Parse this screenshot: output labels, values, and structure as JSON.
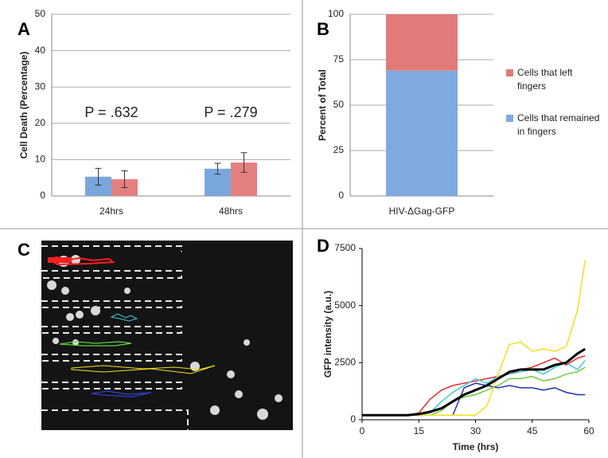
{
  "chart_data": [
    {
      "type": "bar",
      "label": "A",
      "ylabel": "Cell Death (Percentage)",
      "categories": [
        "24hrs",
        "48hrs"
      ],
      "series": [
        {
          "color": "#79a7dc",
          "values": [
            5.3,
            7.5
          ],
          "errors": [
            2.3,
            1.5
          ]
        },
        {
          "color": "#e58080",
          "values": [
            4.6,
            9.2
          ],
          "errors": [
            2.3,
            2.7
          ]
        }
      ],
      "annotations": [
        "P = .632",
        "P = .279"
      ],
      "ylim": [
        0,
        50
      ],
      "yticks": [
        0,
        10,
        20,
        30,
        40,
        50
      ],
      "grid": true
    },
    {
      "type": "bar",
      "stacked": true,
      "label": "B",
      "ylabel": "Percent of Total",
      "categories": [
        "HIV-ΔGag-GFP"
      ],
      "series": [
        {
          "name": "Cells that remained in fingers",
          "color": "#7faadf",
          "values": [
            69
          ]
        },
        {
          "name": "Cells that left fingers",
          "color": "#e27a7a",
          "values": [
            31
          ]
        }
      ],
      "ylim": [
        0,
        100
      ],
      "yticks": [
        0,
        25,
        50,
        75,
        100
      ],
      "grid": true,
      "legend": "right"
    },
    {
      "type": "line",
      "label": "D",
      "xlabel": "Time (hrs)",
      "ylabel": "GFP intensity (a.u.)",
      "x": [
        0,
        3,
        6,
        9,
        12,
        15,
        18,
        21,
        24,
        27,
        30,
        33,
        36,
        39,
        42,
        45,
        48,
        51,
        54,
        57,
        59
      ],
      "series": [
        {
          "color": "#e03030",
          "values": [
            200,
            200,
            200,
            200,
            200,
            300,
            900,
            1300,
            1500,
            1600,
            1700,
            1800,
            1900,
            2000,
            2200,
            2300,
            2500,
            2700,
            2400,
            2700,
            2800
          ]
        },
        {
          "color": "#40c8e0",
          "values": [
            200,
            200,
            200,
            200,
            200,
            200,
            300,
            800,
            1200,
            1500,
            1800,
            1600,
            1900,
            2000,
            2100,
            2200,
            2000,
            2300,
            2500,
            2200,
            2600
          ]
        },
        {
          "color": "#70c840",
          "values": [
            200,
            200,
            200,
            200,
            200,
            200,
            200,
            400,
            800,
            1000,
            1100,
            1300,
            1500,
            1800,
            1800,
            1900,
            1700,
            1800,
            2000,
            2100,
            2300
          ]
        },
        {
          "color": "#2030b0",
          "values": [
            200,
            200,
            200,
            200,
            200,
            200,
            200,
            200,
            200,
            1400,
            1600,
            1500,
            1400,
            1500,
            1400,
            1400,
            1300,
            1400,
            1200,
            1100,
            1100
          ]
        },
        {
          "color": "#f0e020",
          "values": [
            200,
            200,
            200,
            200,
            200,
            200,
            200,
            200,
            200,
            200,
            200,
            600,
            2000,
            3300,
            3400,
            3000,
            3100,
            3000,
            3200,
            4800,
            7000
          ]
        },
        {
          "color": "#000000",
          "values": [
            200,
            200,
            200,
            200,
            200,
            250,
            350,
            500,
            800,
            1100,
            1300,
            1500,
            1800,
            2100,
            2200,
            2200,
            2200,
            2400,
            2500,
            2900,
            3100
          ]
        }
      ],
      "xlim": [
        0,
        60
      ],
      "xticks": [
        0,
        15,
        30,
        45,
        60
      ],
      "ylim": [
        0,
        7500
      ],
      "yticks": [
        0,
        2500,
        5000,
        7500
      ],
      "grid": false
    }
  ],
  "image_panel": {
    "label": "C"
  }
}
